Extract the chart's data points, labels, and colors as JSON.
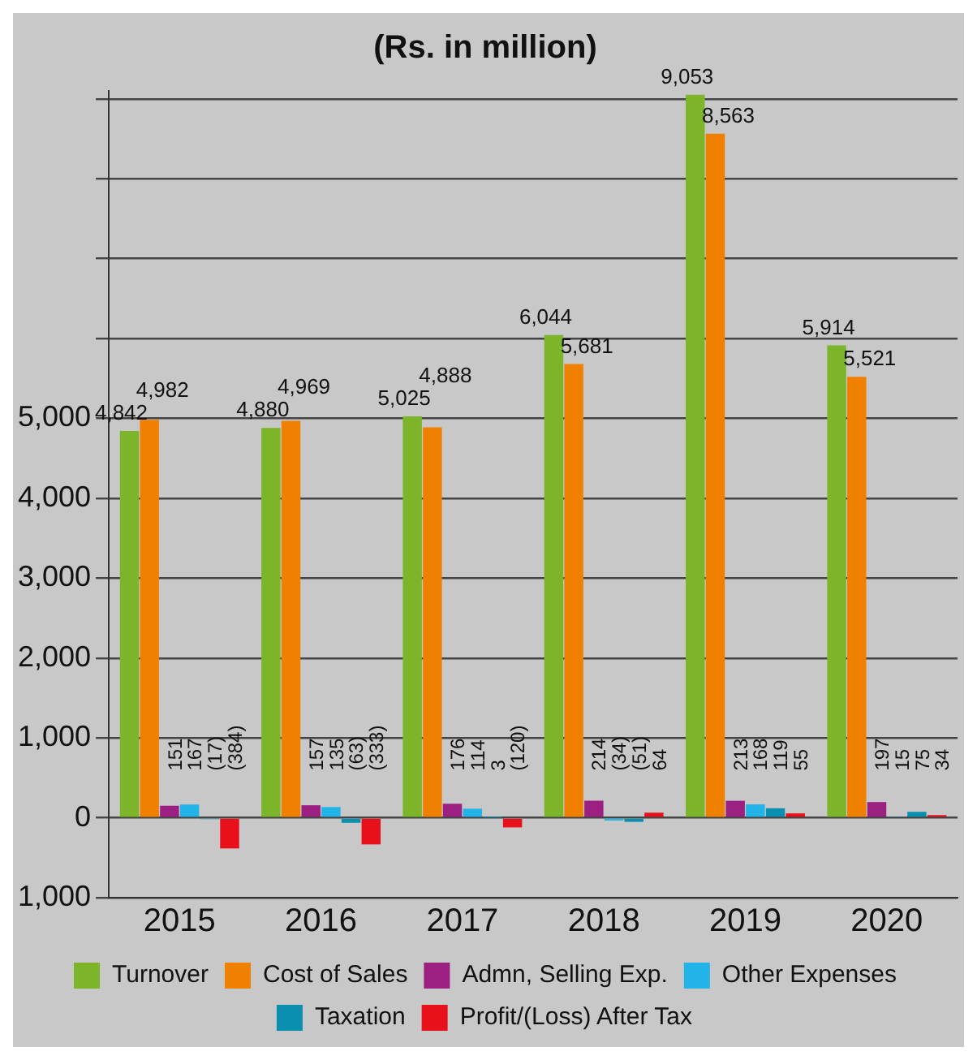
{
  "chart_data": {
    "type": "bar",
    "title": "(Rs. in million)",
    "categories": [
      "2015",
      "2016",
      "2017",
      "2018",
      "2019",
      "2020"
    ],
    "series": [
      {
        "name": "Turnover",
        "color": "#7db52a",
        "values": [
          4842,
          4880,
          5025,
          6044,
          9053,
          5914
        ],
        "value_labels": [
          "4,842",
          "4,880",
          "5,025",
          "6,044",
          "9,053",
          "5,914"
        ]
      },
      {
        "name": "Cost of Sales",
        "color": "#f08000",
        "values": [
          4982,
          4969,
          4888,
          5681,
          8563,
          5521
        ],
        "value_labels": [
          "4,982",
          "4,969",
          "4,888",
          "5,681",
          "8,563",
          "5,521"
        ]
      },
      {
        "name": "Admn, Selling Exp.",
        "color": "#9c1f82",
        "values": [
          151,
          157,
          176,
          214,
          213,
          197
        ],
        "value_labels": [
          "151",
          "157",
          "176",
          "214",
          "213",
          "197"
        ]
      },
      {
        "name": "Other Expenses",
        "color": "#22b4e8",
        "values": [
          167,
          135,
          114,
          -34,
          168,
          15
        ],
        "value_labels": [
          "167",
          "135",
          "114",
          "(34)",
          "168",
          "15"
        ]
      },
      {
        "name": "Taxation",
        "color": "#0b8fb0",
        "values": [
          -17,
          -63,
          3,
          -51,
          119,
          75
        ],
        "value_labels": [
          "(17)",
          "(63)",
          "3",
          "(51)",
          "119",
          "75"
        ]
      },
      {
        "name": "Profit/(Loss) After Tax",
        "color": "#e8101a",
        "values": [
          -384,
          -333,
          -120,
          64,
          55,
          34
        ],
        "value_labels": [
          "(384)",
          "(333)",
          "(120)",
          "64",
          "55",
          "34"
        ]
      }
    ],
    "ylim": [
      -1000,
      9100
    ],
    "yticks": [
      {
        "value": -1000,
        "label": "1,000"
      },
      0,
      {
        "value": 1000,
        "label": "1,000"
      },
      {
        "value": 2000,
        "label": "2,000"
      },
      {
        "value": 3000,
        "label": "3,000"
      },
      {
        "value": 4000,
        "label": "4,000"
      },
      {
        "value": 5000,
        "label": "5,000"
      },
      {
        "value": 6000,
        "label": null
      },
      {
        "value": 7000,
        "label": null
      },
      {
        "value": 8000,
        "label": null
      },
      {
        "value": 9000,
        "label": null
      }
    ],
    "grid": "y",
    "legend": "bottom"
  }
}
